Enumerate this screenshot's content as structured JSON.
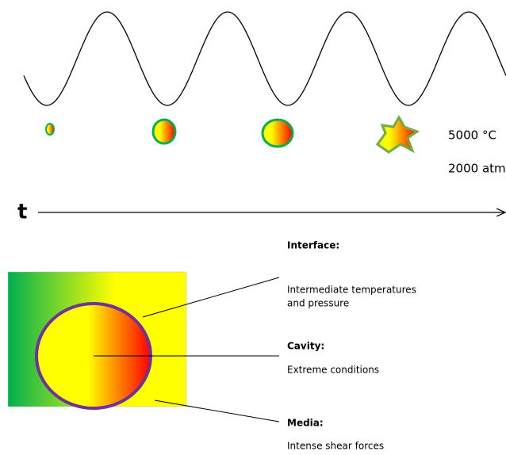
{
  "conditions": {
    "temperature": "5000 °C",
    "pressure": "2000 atm"
  },
  "time_axis": {
    "label": "t"
  },
  "legend": {
    "interface": {
      "title": "Interface:",
      "lines": [
        "Intermediate temperatures",
        "and pressure"
      ]
    },
    "cavity": {
      "title": "Cavity:",
      "lines": [
        "Extreme conditions"
      ]
    },
    "media": {
      "title": "Media:",
      "lines": [
        "Intense shear forces"
      ]
    }
  }
}
